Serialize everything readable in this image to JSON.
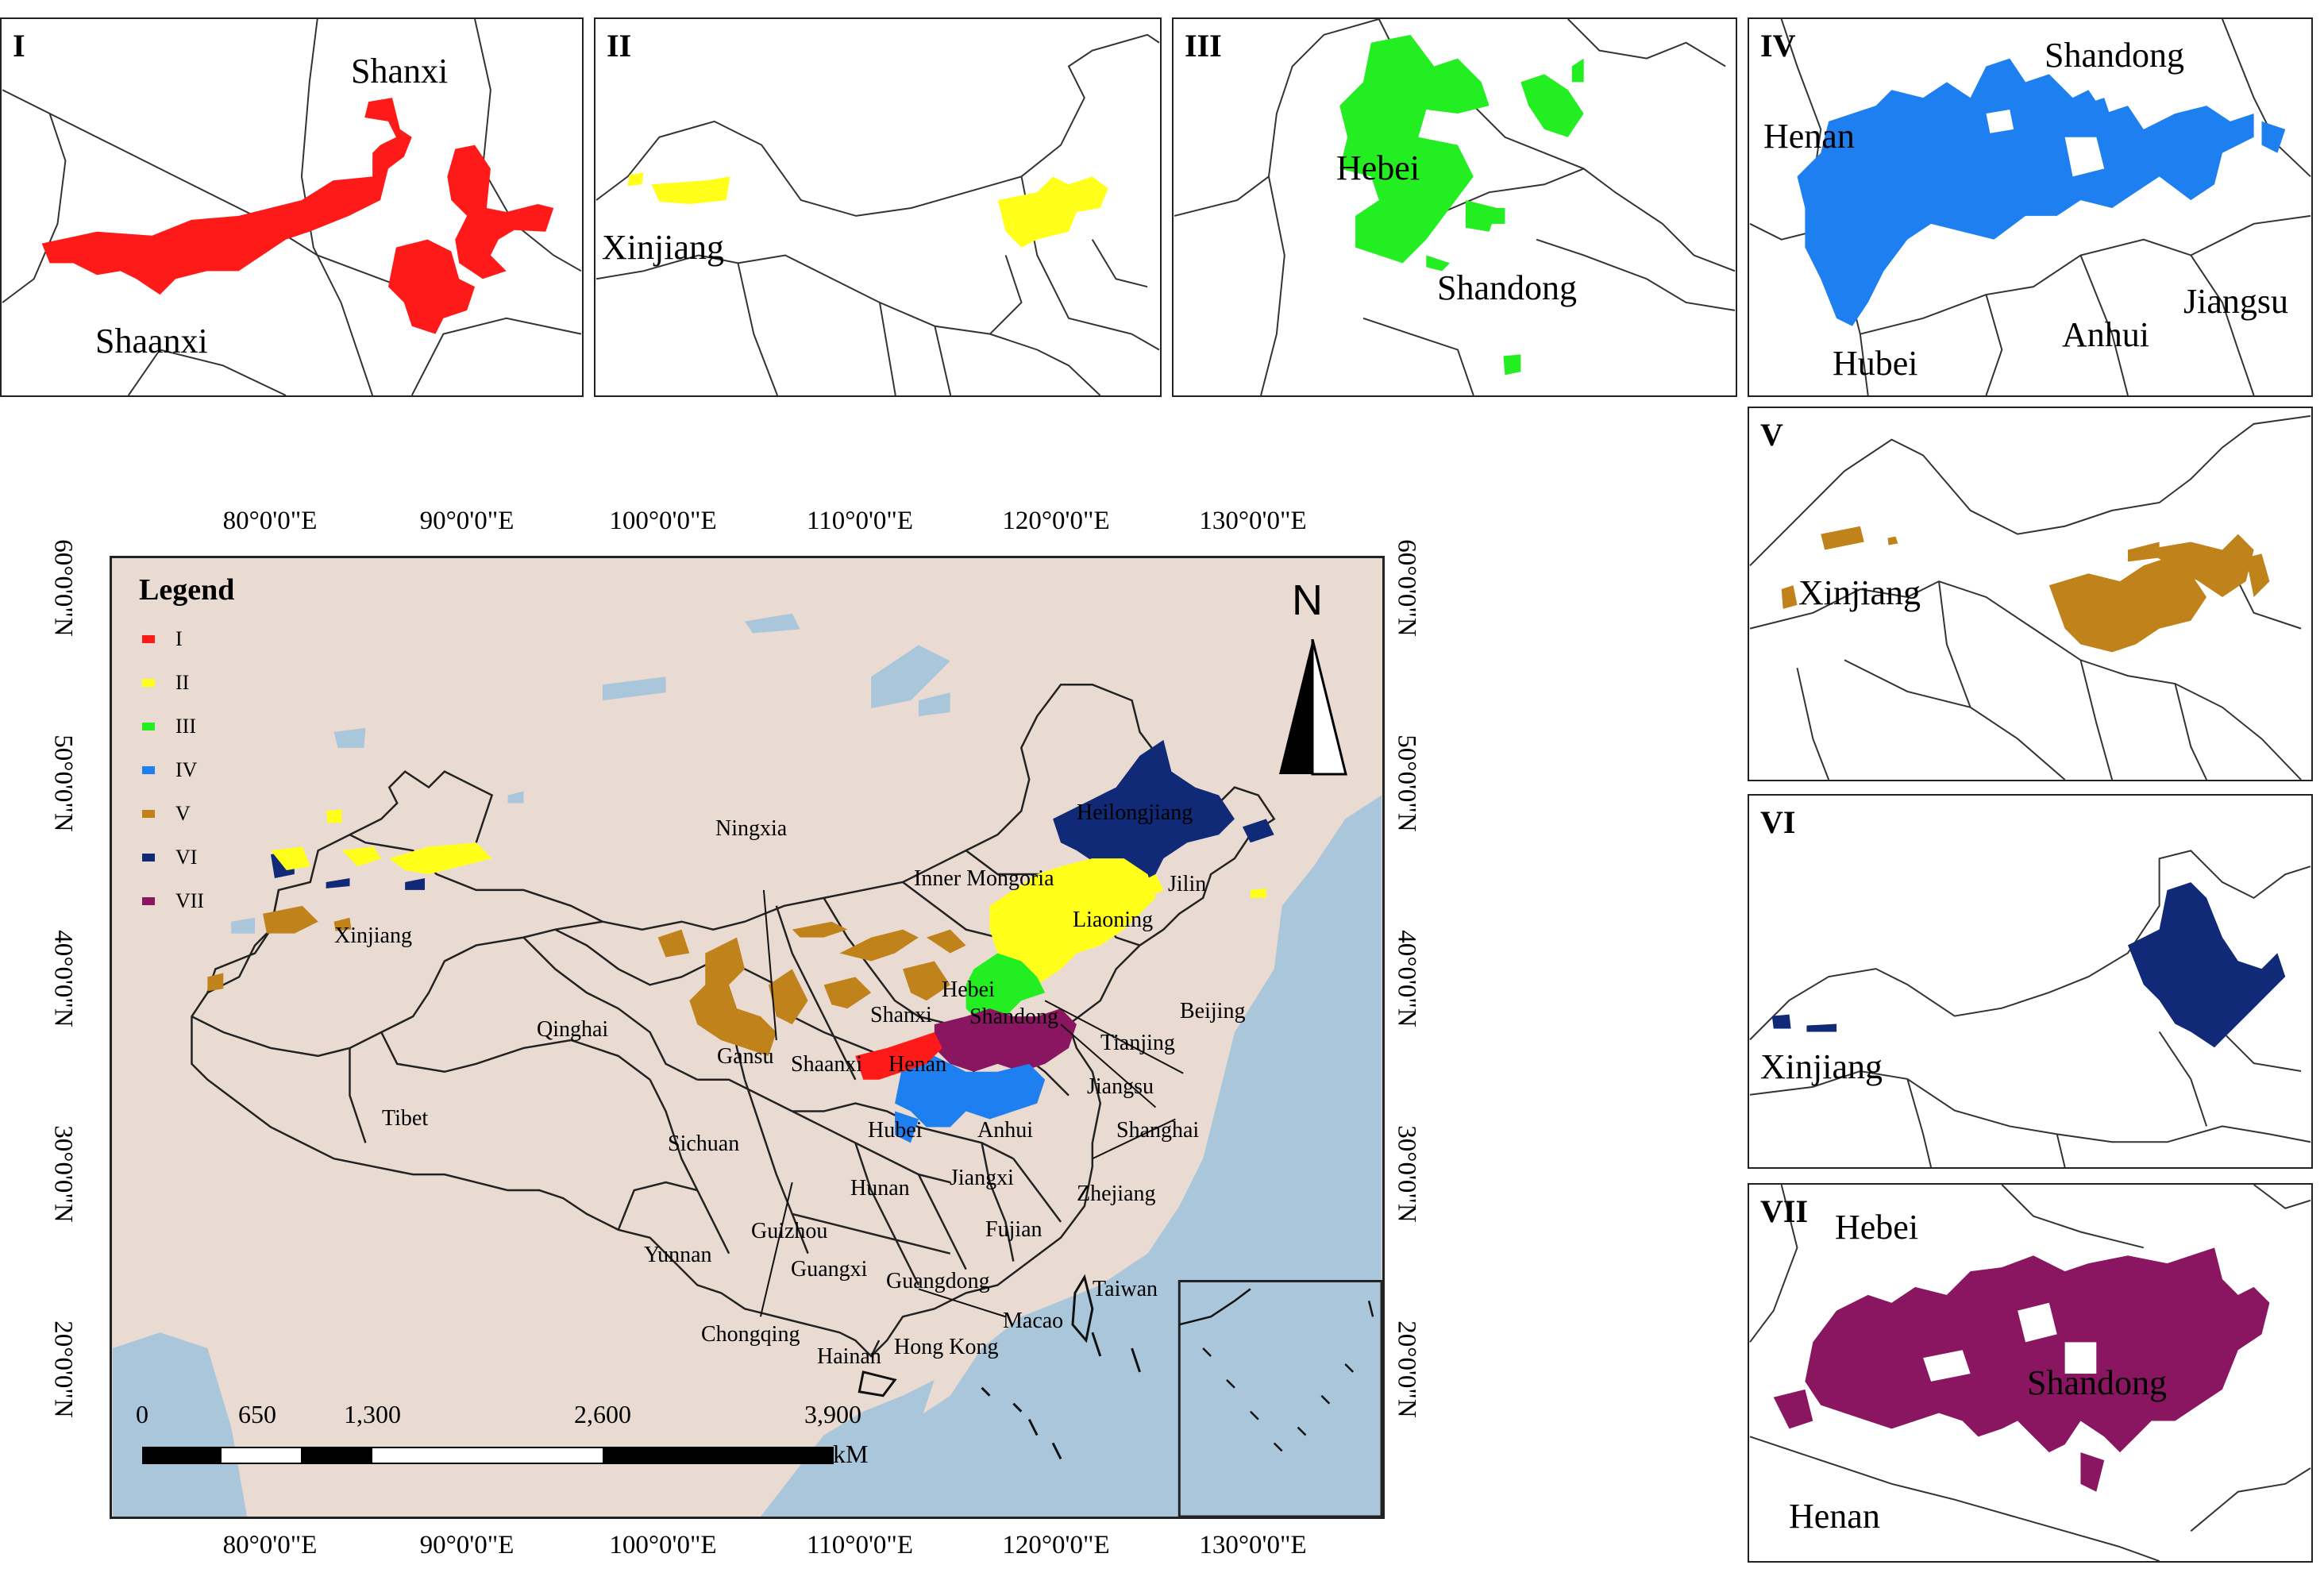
{
  "panels": [
    {
      "id": "I",
      "color": "#ff1a1a",
      "labels": [
        "Shanxi",
        "Shaanxi"
      ]
    },
    {
      "id": "II",
      "color": "#ffff1a",
      "labels": [
        "Xinjiang"
      ]
    },
    {
      "id": "III",
      "color": "#22ee22",
      "labels": [
        "Hebei",
        "Shandong"
      ]
    },
    {
      "id": "IV",
      "color": "#1e7ff0",
      "labels": [
        "Shandong",
        "Henan",
        "Jiangsu",
        "Anhui",
        "Hubei"
      ]
    },
    {
      "id": "V",
      "color": "#c0821a",
      "labels": [
        "Xinjiang"
      ]
    },
    {
      "id": "VI",
      "color": "#102a78",
      "labels": [
        "Xinjiang"
      ]
    },
    {
      "id": "VII",
      "color": "#8a1560",
      "labels": [
        "Hebei",
        "Shandong",
        "Henan"
      ]
    }
  ],
  "main_map": {
    "lon_ticks": [
      "80°0'0\"E",
      "90°0'0\"E",
      "100°0'0\"E",
      "110°0'0\"E",
      "120°0'0\"E",
      "130°0'0\"E"
    ],
    "lat_ticks": [
      "60°0'0\"N",
      "50°0'0\"N",
      "40°0'0\"N",
      "30°0'0\"N",
      "20°0'0\"N"
    ],
    "legend": {
      "title": "Legend",
      "items": [
        {
          "label": "I",
          "color": "#ff1a1a"
        },
        {
          "label": "II",
          "color": "#ffff1a"
        },
        {
          "label": "III",
          "color": "#22ee22"
        },
        {
          "label": "IV",
          "color": "#1e7ff0"
        },
        {
          "label": "V",
          "color": "#c0821a"
        },
        {
          "label": "VI",
          "color": "#102a78"
        },
        {
          "label": "VII",
          "color": "#8a1560"
        }
      ]
    },
    "north_label": "N",
    "scale": {
      "labels": [
        "0",
        "650",
        "1,300",
        "2,600",
        "3,900"
      ],
      "unit": "kM"
    },
    "provinces": [
      "Ningxia",
      "Heilongjiang",
      "Inner Mongoria",
      "Jilin",
      "Xinjiang",
      "Liaoning",
      "Beijing",
      "Hebei",
      "Shanxi",
      "Shandong",
      "Tianjing",
      "Qinghai",
      "Gansu",
      "Shaanxi",
      "Henan",
      "Jiangsu",
      "Tibet",
      "Hubei",
      "Anhui",
      "Shanghai",
      "Sichuan",
      "Hunan",
      "Jiangxi",
      "Zhejiang",
      "Guizhou",
      "Fujian",
      "Yunnan",
      "Guangxi",
      "Guangdong",
      "Taiwan",
      "Macao",
      "Chongqing",
      "Hong Kong",
      "Hainan"
    ]
  }
}
